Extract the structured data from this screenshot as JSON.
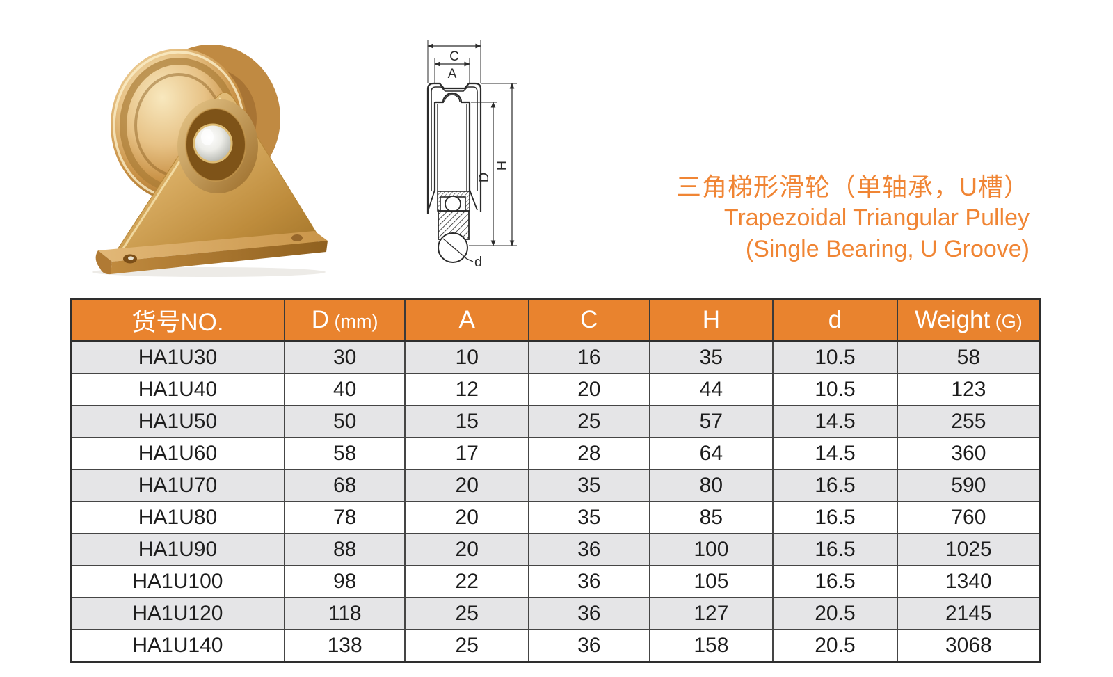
{
  "title": {
    "line_zh": "三角梯形滑轮（单轴承，U槽）",
    "line_en1": "Trapezoidal Triangular Pulley",
    "line_en2": "(Single Bearing, U Groove)"
  },
  "diagram": {
    "dim_c": "C",
    "dim_a": "A",
    "dim_d_outer": "D",
    "dim_h": "H",
    "dim_d_shaft": "d"
  },
  "product_photo": {
    "description": "gold zinc-plated trapezoidal triangular pulley with single bearing and U groove wheel"
  },
  "colors": {
    "table_header_orange": "#E9832E",
    "title_orange": "#F08534",
    "row_alt_gray": "#E5E5E7",
    "table_border": "#3A3A3A"
  },
  "table": {
    "columns": [
      {
        "label": "货号NO.",
        "unit": ""
      },
      {
        "label": "D",
        "unit": "(mm)"
      },
      {
        "label": "A",
        "unit": ""
      },
      {
        "label": "C",
        "unit": ""
      },
      {
        "label": "H",
        "unit": ""
      },
      {
        "label": "d",
        "unit": ""
      },
      {
        "label": "Weight",
        "unit": "(G)"
      }
    ],
    "rows": [
      [
        "HA1U30",
        "30",
        "10",
        "16",
        "35",
        "10.5",
        "58"
      ],
      [
        "HA1U40",
        "40",
        "12",
        "20",
        "44",
        "10.5",
        "123"
      ],
      [
        "HA1U50",
        "50",
        "15",
        "25",
        "57",
        "14.5",
        "255"
      ],
      [
        "HA1U60",
        "58",
        "17",
        "28",
        "64",
        "14.5",
        "360"
      ],
      [
        "HA1U70",
        "68",
        "20",
        "35",
        "80",
        "16.5",
        "590"
      ],
      [
        "HA1U80",
        "78",
        "20",
        "35",
        "85",
        "16.5",
        "760"
      ],
      [
        "HA1U90",
        "88",
        "20",
        "36",
        "100",
        "16.5",
        "1025"
      ],
      [
        "HA1U100",
        "98",
        "22",
        "36",
        "105",
        "16.5",
        "1340"
      ],
      [
        "HA1U120",
        "118",
        "25",
        "36",
        "127",
        "20.5",
        "2145"
      ],
      [
        "HA1U140",
        "138",
        "25",
        "36",
        "158",
        "20.5",
        "3068"
      ]
    ]
  }
}
